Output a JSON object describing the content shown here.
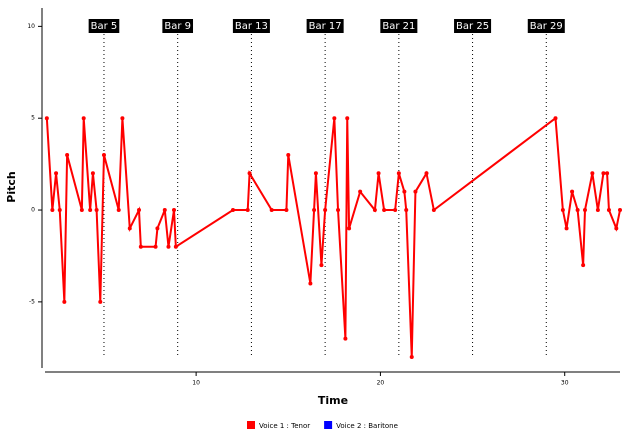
{
  "chart_data": {
    "type": "line",
    "x_label": "Time",
    "y_label": "Pitch",
    "xlim": [
      1.8,
      33
    ],
    "ylim": [
      -8.6,
      11
    ],
    "xticks": [
      10,
      20,
      30
    ],
    "yticks": [
      -5,
      0,
      5,
      10
    ],
    "annotations": [
      {
        "text": "Bar 5",
        "x": 5
      },
      {
        "text": "Bar 9",
        "x": 9
      },
      {
        "text": "Bar 13",
        "x": 13
      },
      {
        "text": "Bar 17",
        "x": 17
      },
      {
        "text": "Bar 21",
        "x": 21
      },
      {
        "text": "Bar 25",
        "x": 25
      },
      {
        "text": "Bar 29",
        "x": 29
      }
    ],
    "series": [
      {
        "name": "Voice 1 : Tenor",
        "color": "#ff0000",
        "x": [
          1.9,
          2.2,
          2.4,
          2.6,
          2.85,
          3.0,
          3.8,
          3.9,
          4.25,
          4.4,
          4.6,
          4.8,
          5.0,
          5.8,
          6.0,
          6.4,
          6.9,
          7.0,
          7.8,
          7.9,
          8.3,
          8.5,
          8.8,
          8.9,
          12.0,
          12.8,
          12.9,
          14.1,
          14.9,
          15.0,
          16.2,
          16.4,
          16.5,
          16.8,
          17.0,
          17.5,
          17.7,
          18.1,
          18.2,
          18.3,
          18.9,
          19.7,
          19.9,
          20.2,
          20.8,
          21.0,
          21.3,
          21.4,
          21.7,
          21.9,
          22.5,
          22.9,
          29.5,
          29.9,
          30.1,
          30.4,
          30.7,
          31.0,
          31.1,
          31.5,
          31.8,
          32.1,
          32.3,
          32.4,
          32.8,
          33.0
        ],
        "values": [
          5,
          0,
          2,
          0,
          -5,
          3,
          0,
          5,
          0,
          2,
          0,
          -5,
          3,
          0,
          5,
          -1,
          0,
          -2,
          -2,
          -1,
          0,
          -2,
          0,
          -2,
          0,
          0,
          2,
          0,
          0,
          3,
          -4,
          0,
          2,
          -3,
          0,
          5,
          0,
          -7,
          5,
          -1,
          1,
          0,
          2,
          0,
          0,
          2,
          1,
          0,
          -8,
          1,
          2,
          0,
          5,
          0,
          -1,
          1,
          0,
          -3,
          0,
          2,
          0,
          2,
          2,
          0,
          -1,
          0
        ]
      },
      {
        "name": "Voice 2 : Baritone",
        "color": "#0000ff",
        "x": [],
        "values": []
      }
    ]
  }
}
